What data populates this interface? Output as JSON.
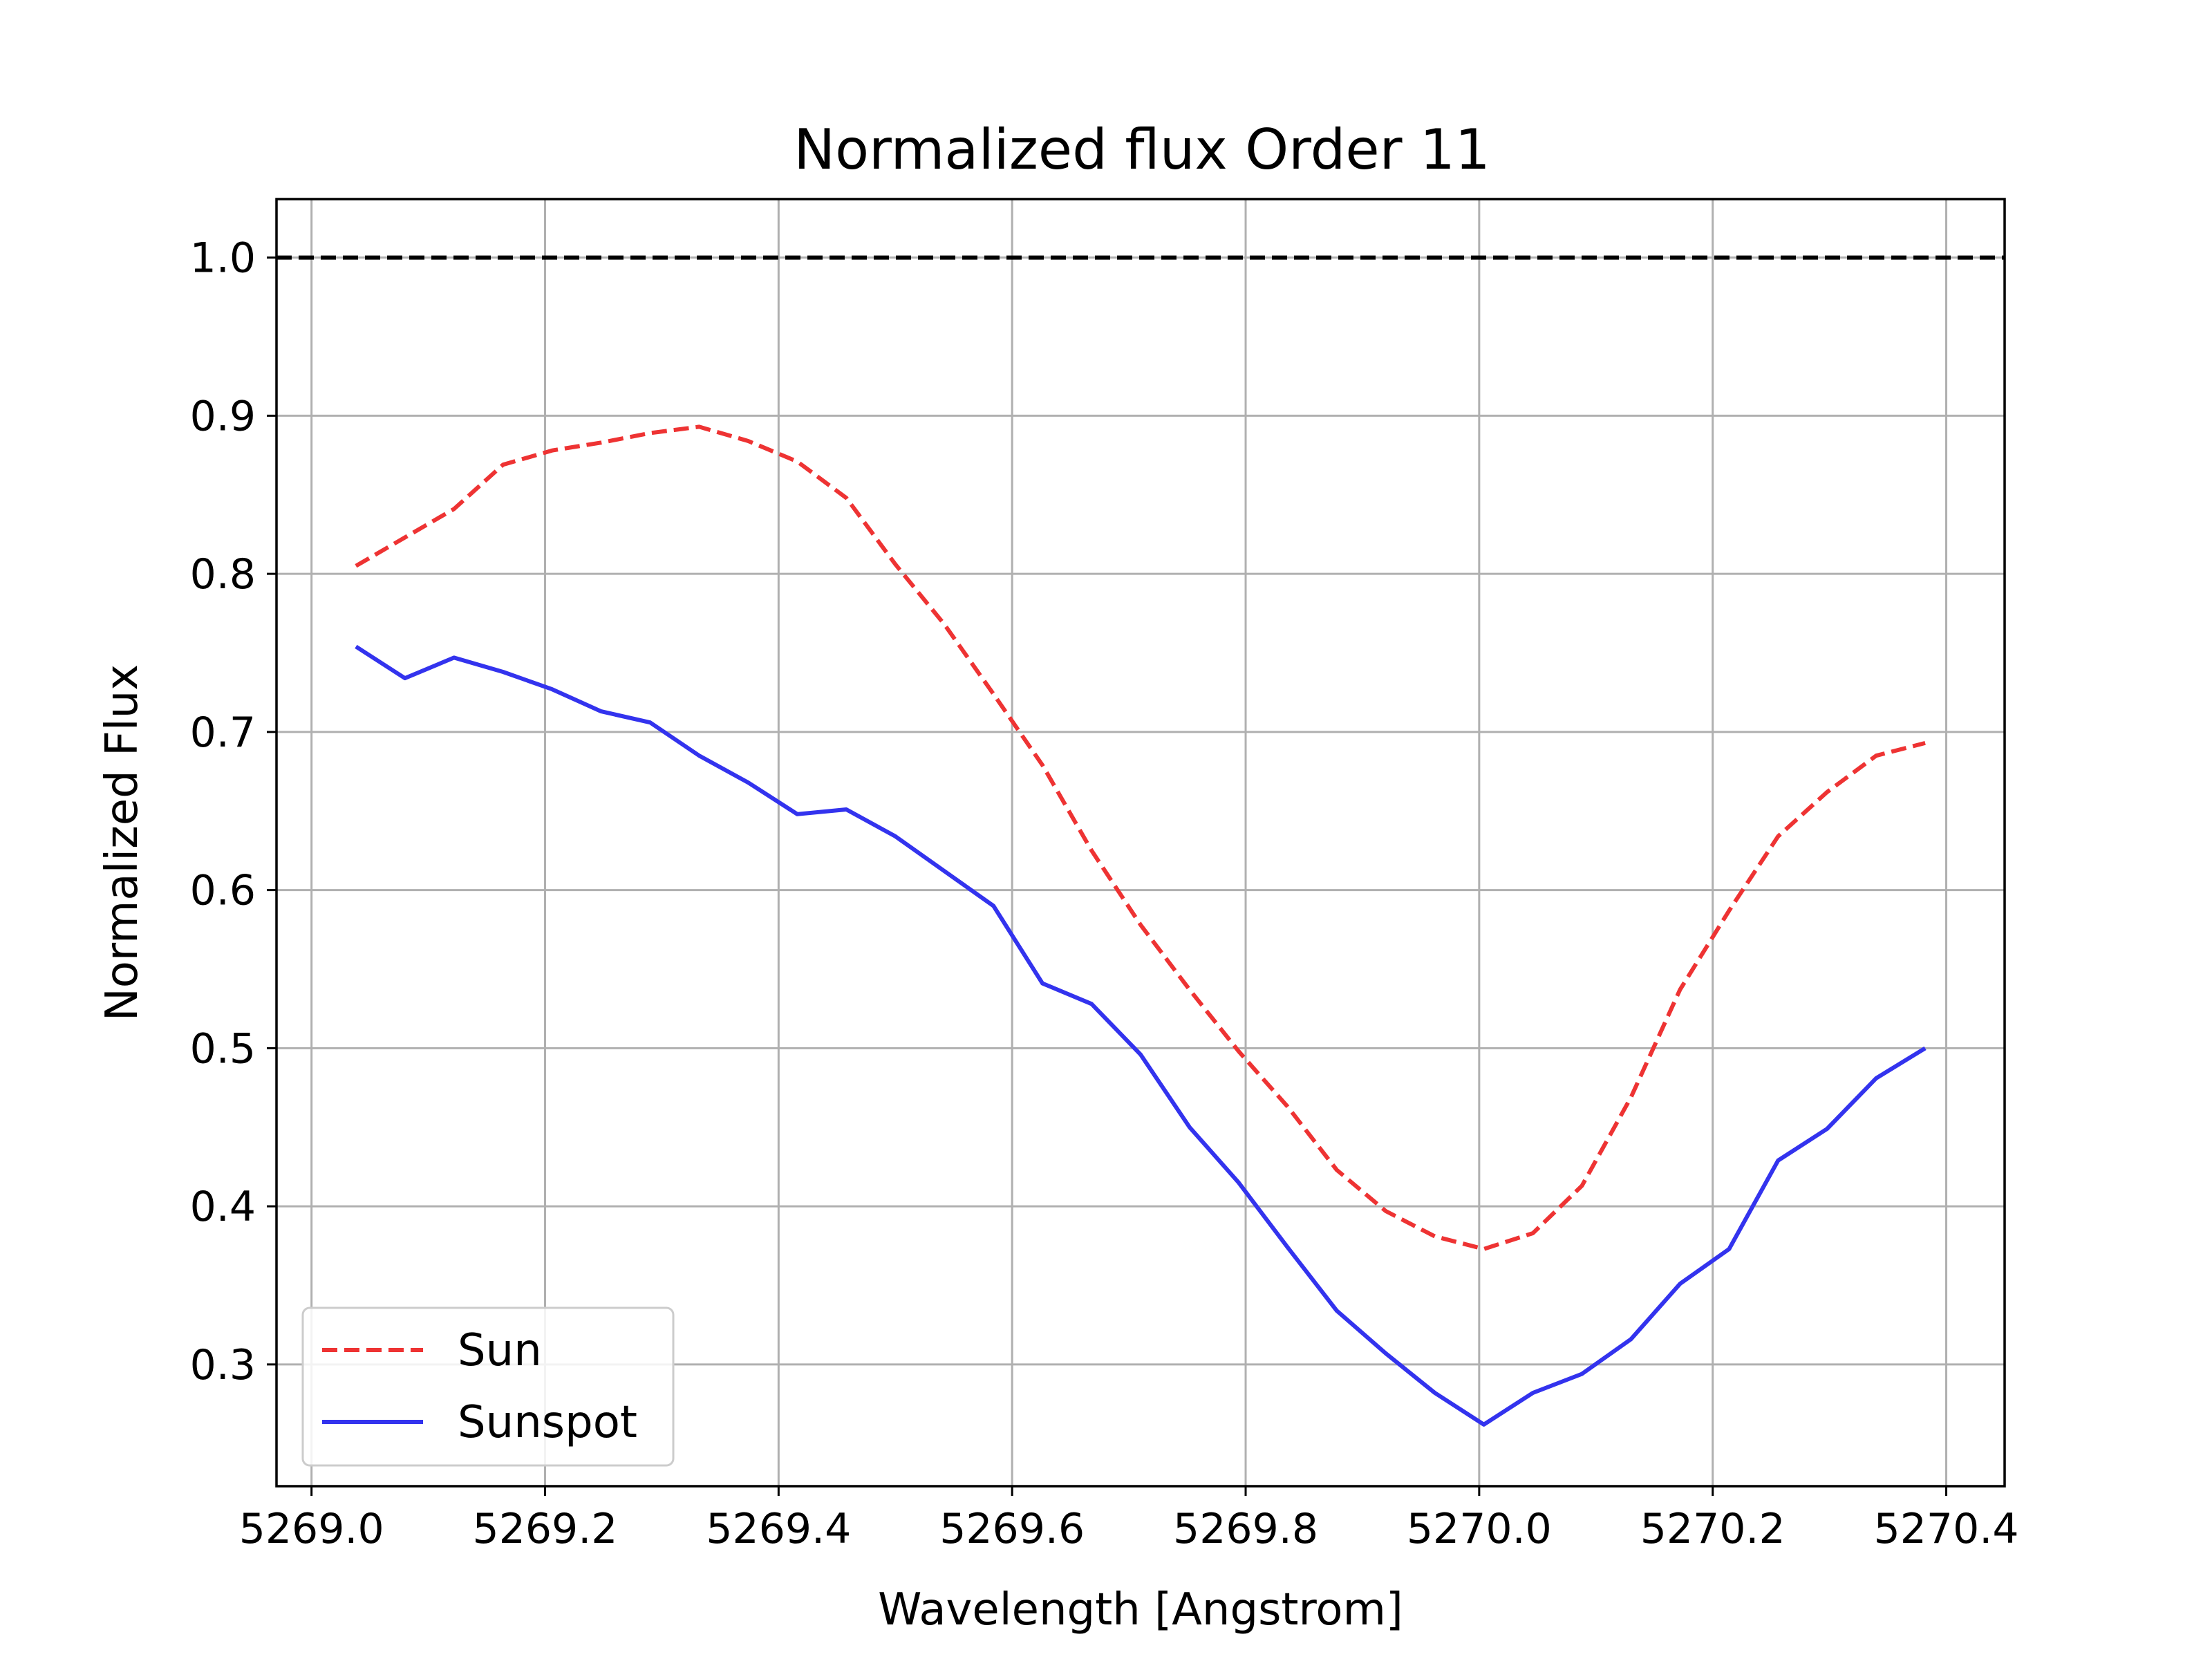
{
  "chart_data": {
    "type": "line",
    "title": "Normalized flux Order 11",
    "xlabel": "Wavelength [Angstrom]",
    "ylabel": "Normalized Flux",
    "xlim": [
      5268.97,
      5270.45
    ],
    "ylim": [
      0.223,
      1.037
    ],
    "xticks": [
      5269.0,
      5269.2,
      5269.4,
      5269.6,
      5269.8,
      5270.0,
      5270.2,
      5270.4
    ],
    "xtick_labels": [
      "5269.0",
      "5269.2",
      "5269.4",
      "5269.6",
      "5269.8",
      "5270.0",
      "5270.2",
      "5270.4"
    ],
    "yticks": [
      0.3,
      0.4,
      0.5,
      0.6,
      0.7,
      0.8,
      0.9,
      1.0
    ],
    "ytick_labels": [
      "0.3",
      "0.4",
      "0.5",
      "0.6",
      "0.7",
      "0.8",
      "0.9",
      "1.0"
    ],
    "grid": true,
    "legend_position": "lower-left",
    "reference_line": {
      "y": 1.0,
      "color": "#000000",
      "style": "dashed"
    },
    "x": [
      5269.038,
      5269.08,
      5269.122,
      5269.164,
      5269.206,
      5269.248,
      5269.29,
      5269.332,
      5269.374,
      5269.416,
      5269.458,
      5269.5,
      5269.542,
      5269.584,
      5269.626,
      5269.668,
      5269.71,
      5269.752,
      5269.794,
      5269.836,
      5269.878,
      5269.92,
      5269.962,
      5270.004,
      5270.046,
      5270.088,
      5270.13,
      5270.172,
      5270.214,
      5270.256,
      5270.298,
      5270.34,
      5270.382
    ],
    "series": [
      {
        "name": "Sun",
        "color": "#ee3333",
        "style": "dashed",
        "values": [
          0.805,
          0.823,
          0.841,
          0.869,
          0.878,
          0.883,
          0.889,
          0.893,
          0.884,
          0.871,
          0.848,
          0.806,
          0.768,
          0.724,
          0.679,
          0.625,
          0.578,
          0.537,
          0.498,
          0.463,
          0.423,
          0.397,
          0.381,
          0.373,
          0.383,
          0.413,
          0.469,
          0.537,
          0.587,
          0.634,
          0.662,
          0.685,
          0.693
        ]
      },
      {
        "name": "Sunspot",
        "color": "#3333ee",
        "style": "solid",
        "values": [
          0.754,
          0.734,
          0.747,
          0.738,
          0.727,
          0.713,
          0.706,
          0.685,
          0.668,
          0.648,
          0.651,
          0.634,
          0.612,
          0.59,
          0.541,
          0.528,
          0.496,
          0.45,
          0.415,
          0.374,
          0.334,
          0.307,
          0.282,
          0.262,
          0.282,
          0.294,
          0.316,
          0.351,
          0.373,
          0.429,
          0.449,
          0.481,
          0.5
        ]
      }
    ]
  }
}
